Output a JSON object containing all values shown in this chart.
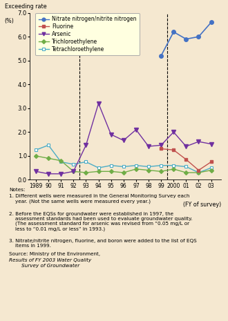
{
  "years": [
    1989,
    1990,
    1991,
    1992,
    1993,
    1994,
    1995,
    1996,
    1997,
    1998,
    1999,
    2000,
    2001,
    2002,
    2003
  ],
  "nitrate": [
    null,
    null,
    null,
    null,
    null,
    null,
    null,
    null,
    null,
    null,
    5.2,
    6.2,
    5.9,
    6.0,
    6.6
  ],
  "fluorine": [
    null,
    null,
    null,
    null,
    null,
    null,
    null,
    null,
    null,
    null,
    1.3,
    1.25,
    0.85,
    0.4,
    0.75
  ],
  "arsenic": [
    0.35,
    0.25,
    0.25,
    0.35,
    1.45,
    3.2,
    1.9,
    1.65,
    2.1,
    1.4,
    1.45,
    2.0,
    1.4,
    1.6,
    1.5
  ],
  "trichloro": [
    1.0,
    0.9,
    0.8,
    0.35,
    0.3,
    0.35,
    0.35,
    0.3,
    0.45,
    0.4,
    0.35,
    0.45,
    0.3,
    0.3,
    0.4
  ],
  "tetrachloro": [
    1.25,
    1.45,
    0.75,
    0.65,
    0.75,
    0.5,
    0.6,
    0.55,
    0.6,
    0.55,
    0.6,
    0.6,
    0.55,
    0.3,
    0.5
  ],
  "nitrate_color": "#4472c4",
  "fluorine_color": "#c0504d",
  "arsenic_color": "#7030a0",
  "trichloro_color": "#70ad47",
  "tetrachloro_color": "#4bacc6",
  "bg_color": "#f5e8d0",
  "legend_bg": "#ffffe0",
  "vline1_x": 1992.5,
  "vline2_x": 1999.5,
  "ylim": [
    0,
    7.0
  ],
  "yticks": [
    0,
    1.0,
    2.0,
    3.0,
    4.0,
    5.0,
    6.0,
    7.0
  ],
  "ylabel1": "Exceeding rate",
  "ylabel2": "(%)",
  "xlabel": "(FY of survey)",
  "legend_labels": [
    "Nitrate nitrogen/nitrite nitrogen",
    "Fluorine",
    "Arsenic",
    "Trichloroethylene",
    "Tetrachloroethylene"
  ],
  "xtick_positions": [
    1989,
    1990,
    1991,
    1992,
    1993,
    1994,
    1995,
    1996,
    1997,
    1998,
    1999,
    2000,
    2001,
    2002,
    2003
  ],
  "xtick_labels": [
    "1989",
    "90",
    "91",
    "92",
    "93",
    "94",
    "95",
    "96",
    "97",
    "98",
    "99",
    "2000",
    "01",
    "02",
    "03"
  ],
  "notes_title": "Notes:",
  "note1": "1. Different wells were measured in the General Monitoring Survey each\n    year. (Not the same wells were measured every year.)",
  "note2": "2. Before the EQSs for groundwater were established in 1997, the\n    assessment standards had been used to evaluate groundwater quality.\n    (The assessment standard for arsenic was revised from “0.05 mg/L or\n    less to “0.01 mg/L or less” in 1993.)",
  "note3": "3. Nitrate/nitrite nitrogen, fluorine, and boron were added to the list of EQS\n    items in 1999.",
  "source_normal": "Source: Ministry of the Environment, ",
  "source_italic": "Results of FY 2003 Water Quality\n        Survey of Groundwater"
}
